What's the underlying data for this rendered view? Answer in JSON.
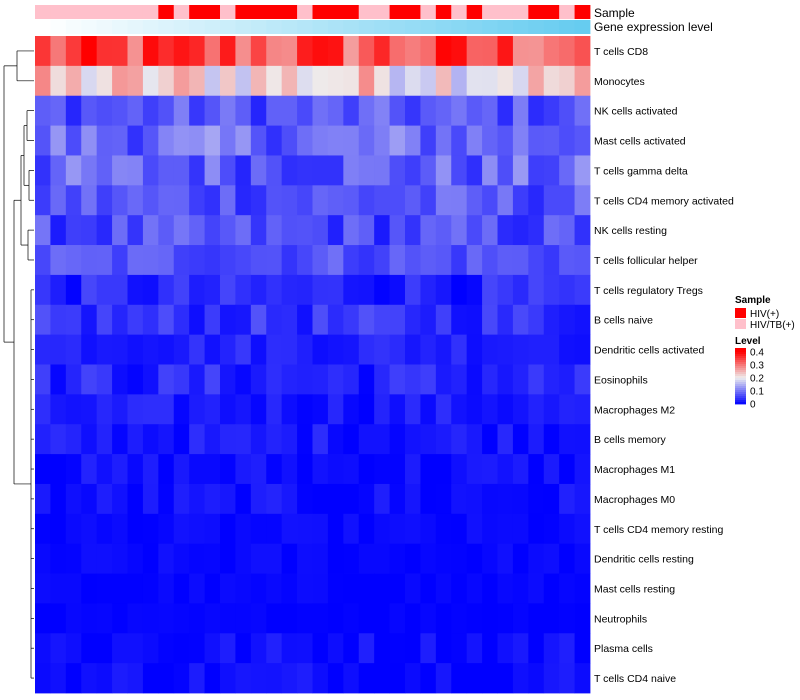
{
  "chart_data": {
    "type": "heatmap",
    "title": "",
    "num_samples": 36,
    "rows": [
      "T cells CD8",
      "Monocytes",
      "NK cells activated",
      "Mast cells activated",
      "T cells gamma delta",
      "T cells CD4 memory activated",
      "NK cells resting",
      "T cells follicular helper",
      "T cells regulatory  Tregs",
      "B cells naive",
      "Dendritic cells activated",
      "Eosinophils",
      "Macrophages M2",
      "B cells memory",
      "Macrophages M1",
      "Macrophages M0",
      "T cells CD4 memory resting",
      "Dendritic cells resting",
      "Mast cells resting",
      "Neutrophils",
      "Plasma cells",
      "T cells CD4 naive"
    ],
    "row_means": [
      0.33,
      0.22,
      0.07,
      0.09,
      0.08,
      0.07,
      0.06,
      0.07,
      0.03,
      0.04,
      0.03,
      0.03,
      0.02,
      0.02,
      0.01,
      0.01,
      0.005,
      0.005,
      0.003,
      0.002,
      0.01,
      0.01
    ],
    "row_noise": [
      0.08,
      0.07,
      0.04,
      0.05,
      0.05,
      0.04,
      0.04,
      0.03,
      0.03,
      0.03,
      0.02,
      0.03,
      0.02,
      0.02,
      0.02,
      0.02,
      0.01,
      0.01,
      0.008,
      0.005,
      0.02,
      0.02
    ],
    "annotations": [
      {
        "name": "Sample",
        "pattern": [
          "HIV/TB(+)",
          "HIV/TB(+)",
          "HIV/TB(+)",
          "HIV/TB(+)",
          "HIV/TB(+)",
          "HIV/TB(+)",
          "HIV/TB(+)",
          "HIV/TB(+)",
          "HIV(+)",
          "HIV/TB(+)",
          "HIV(+)",
          "HIV(+)",
          "HIV/TB(+)",
          "HIV(+)",
          "HIV(+)",
          "HIV(+)",
          "HIV(+)",
          "HIV/TB(+)",
          "HIV(+)",
          "HIV(+)",
          "HIV(+)",
          "HIV/TB(+)",
          "HIV/TB(+)",
          "HIV(+)",
          "HIV(+)",
          "HIV/TB(+)",
          "HIV(+)",
          "HIV/TB(+)",
          "HIV(+)",
          "HIV/TB(+)",
          "HIV/TB(+)",
          "HIV/TB(+)",
          "HIV(+)",
          "HIV(+)",
          "HIV/TB(+)",
          "HIV(+)"
        ]
      },
      {
        "name": "Gene expression level",
        "gradient": [
          "#ffffff",
          "#66ccf0"
        ]
      }
    ],
    "legend": {
      "sample": {
        "title": "Sample",
        "entries": [
          {
            "label": "HIV(+)",
            "color": "#ff0000"
          },
          {
            "label": "HIV/TB(+)",
            "color": "#ffc0cb"
          }
        ]
      },
      "level": {
        "title": "Level",
        "ticks": [
          "0.4",
          "0.3",
          "0.2",
          "0.1",
          "0"
        ],
        "tick_values": [
          0.4,
          0.3,
          0.2,
          0.1,
          0
        ],
        "range": [
          0,
          0.43
        ]
      }
    },
    "color_scale": {
      "low": "#0000ff",
      "mid": "#eeeeee",
      "high": "#ff0000",
      "domain": [
        0,
        0.2,
        0.4
      ]
    }
  }
}
